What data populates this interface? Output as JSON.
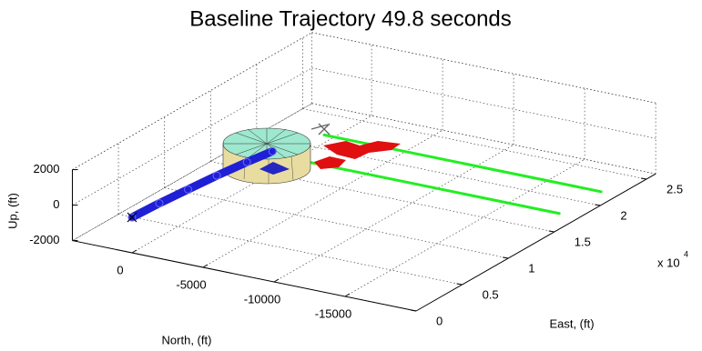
{
  "chart_data": {
    "type": "trajectory3d",
    "title": "Baseline Trajectory 49.8 seconds",
    "xlabel": "North, (ft)",
    "ylabel": "East, (ft)",
    "zlabel": "Up, (ft)",
    "ylabel_exponent": {
      "base": "x 10",
      "power": "4"
    },
    "xlim": [
      -20000,
      4200
    ],
    "ylim": [
      0,
      26000
    ],
    "zlim": [
      -2000,
      2000
    ],
    "xticks": [
      0,
      -5000,
      -10000,
      -15000
    ],
    "yticks": [
      0,
      {
        "value": 5000,
        "label": "0.5"
      },
      {
        "value": 10000,
        "label": "1"
      },
      {
        "value": 15000,
        "label": "1.5"
      },
      {
        "value": 20000,
        "label": "2"
      },
      {
        "value": 25000,
        "label": "2.5"
      }
    ],
    "zticks": [
      2000,
      0,
      -2000
    ],
    "grid": true,
    "series": [
      {
        "color": "#1f1fd6",
        "north": [
          0,
          -300,
          -700,
          -1100,
          -1600,
          -2100
        ],
        "east": [
          0,
          2500,
          5000,
          7500,
          10000,
          12000
        ],
        "up": [
          0,
          100,
          200,
          300,
          400,
          500
        ]
      },
      {
        "color": "#22ee22",
        "north": [
          -2500,
          -22000
        ],
        "east": [
          17000,
          17000
        ],
        "up": [
          0,
          0
        ]
      },
      {
        "color": "#22ee22",
        "north": [
          -3500,
          -21000
        ],
        "east": [
          14000,
          14000
        ],
        "up": [
          -500,
          -500
        ]
      }
    ]
  }
}
